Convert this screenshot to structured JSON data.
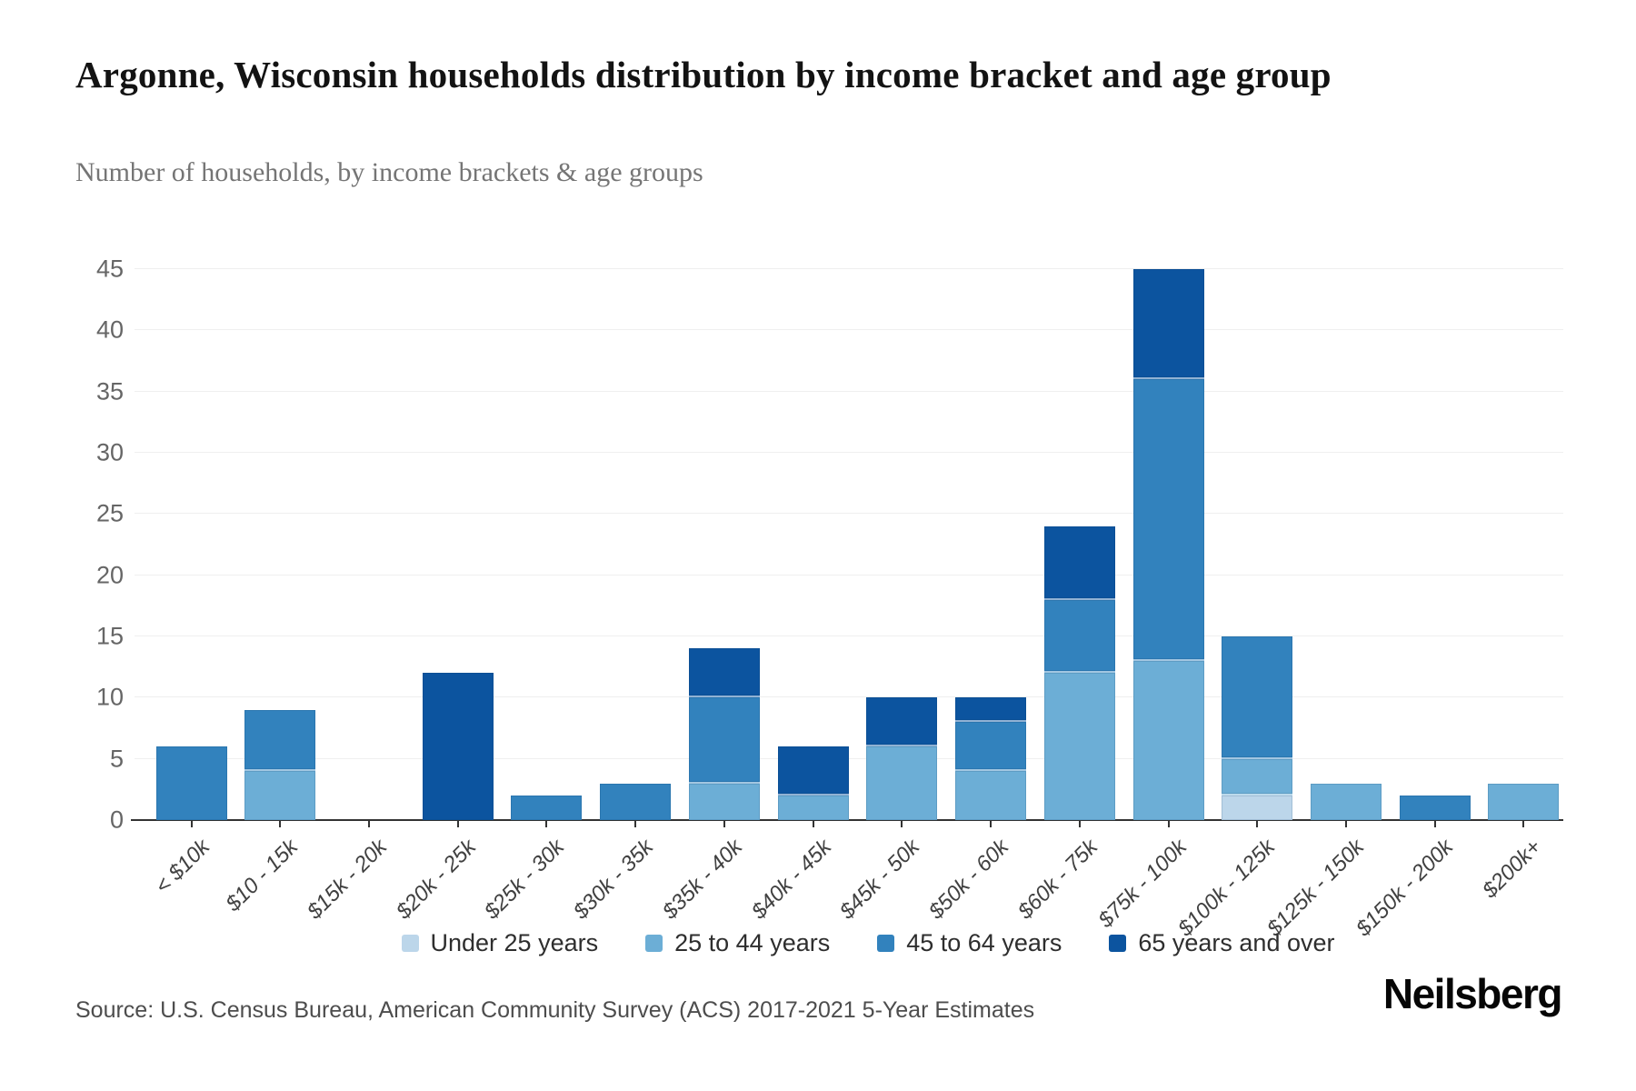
{
  "header": {
    "title": "Argonne, Wisconsin households distribution by income bracket and age group",
    "subtitle": "Number of households, by income brackets & age groups"
  },
  "footer": {
    "source_text": "Source: U.S. Census Bureau, American Community Survey (ACS) 2017-2021 5-Year Estimates",
    "logo_text": "Neilsberg"
  },
  "chart_data": {
    "type": "bar",
    "stacked": true,
    "title": "Argonne, Wisconsin households distribution by income bracket and age group",
    "subtitle": "Number of households, by income brackets & age groups",
    "xlabel": "",
    "ylabel": "",
    "ylim": [
      0,
      45
    ],
    "yticks": [
      0,
      5,
      10,
      15,
      20,
      25,
      30,
      35,
      40,
      45
    ],
    "grid": "horizontal",
    "legend_position": "bottom",
    "categories": [
      "< $10k",
      "$10 - 15k",
      "$15k - 20k",
      "$20k - 25k",
      "$25k - 30k",
      "$30k - 35k",
      "$35k - 40k",
      "$40k - 45k",
      "$45k - 50k",
      "$50k - 60k",
      "$60k - 75k",
      "$75k - 100k",
      "$100k - 125k",
      "$125k - 150k",
      "$150k - 200k",
      "$200k+"
    ],
    "series": [
      {
        "name": "Under 25 years",
        "color": "#bcd6ea",
        "values": [
          0,
          0,
          0,
          0,
          0,
          0,
          0,
          0,
          0,
          0,
          0,
          0,
          2,
          0,
          0,
          0
        ]
      },
      {
        "name": "25 to 44 years",
        "color": "#6caed6",
        "values": [
          0,
          4,
          0,
          0,
          0,
          0,
          3,
          2,
          6,
          4,
          12,
          13,
          3,
          3,
          0,
          3
        ]
      },
      {
        "name": "45 to 64 years",
        "color": "#3282bd",
        "values": [
          6,
          5,
          0,
          0,
          2,
          3,
          7,
          0,
          0,
          4,
          6,
          23,
          10,
          0,
          2,
          0
        ]
      },
      {
        "name": "65 years and over",
        "color": "#0c549f",
        "values": [
          0,
          0,
          0,
          12,
          0,
          0,
          4,
          4,
          4,
          2,
          6,
          9,
          0,
          0,
          0,
          0
        ]
      }
    ],
    "totals": [
      6,
      9,
      0,
      12,
      2,
      3,
      14,
      6,
      10,
      10,
      24,
      45,
      15,
      3,
      2,
      3
    ]
  }
}
